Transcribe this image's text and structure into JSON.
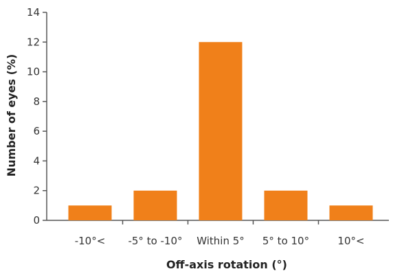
{
  "chart_data": {
    "type": "bar",
    "categories": [
      "-10°<",
      "-5° to -10°",
      "Within 5°",
      "5° to 10°",
      "10°<"
    ],
    "values": [
      1,
      2,
      12,
      2,
      1
    ],
    "title": "",
    "xlabel": "Off-axis rotation (°)",
    "ylabel": "Number of eyes (%)",
    "ylim": [
      0,
      14
    ],
    "yticks": [
      0,
      2,
      4,
      6,
      8,
      10,
      12,
      14
    ],
    "bar_color": "#F0801A",
    "axis_color": "#555555",
    "grid": false,
    "legend": "none"
  }
}
